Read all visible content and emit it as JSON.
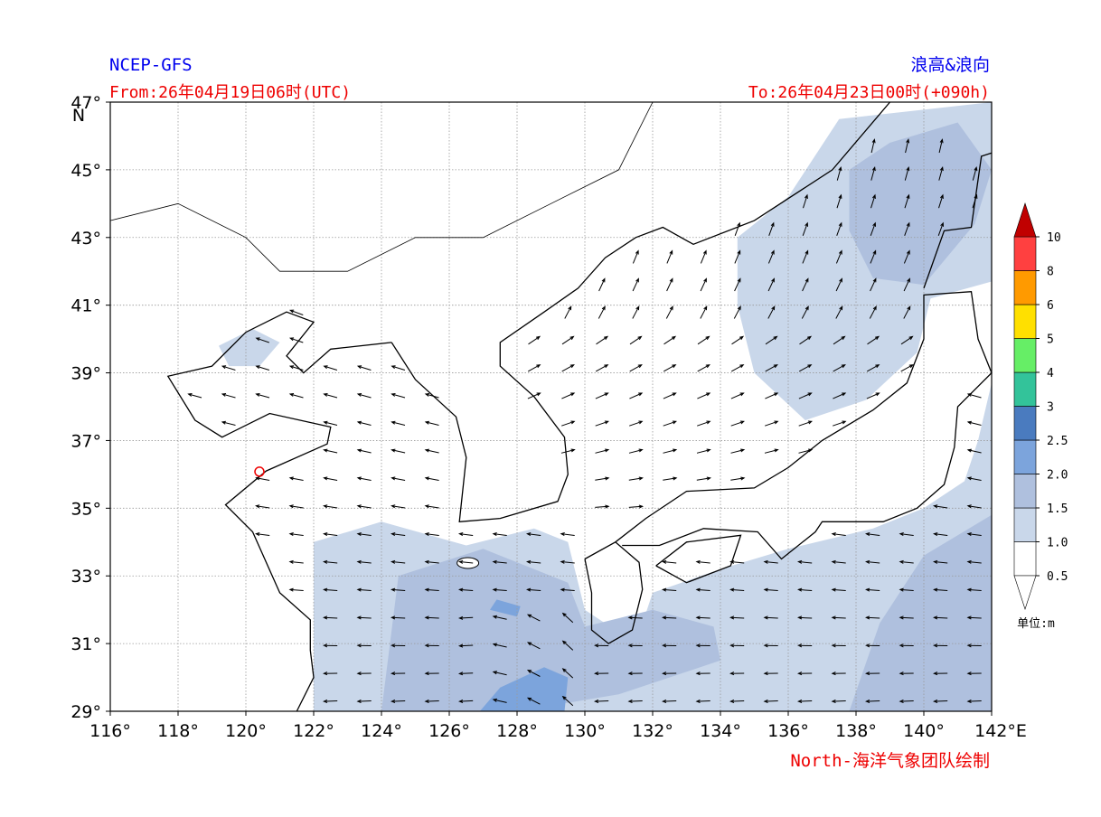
{
  "header": {
    "model": "NCEP-GFS",
    "title": "浪高&浪向",
    "from": "From:26年04月19日06时(UTC)",
    "to": "To:26年04月23日00时(+090h)"
  },
  "footer": "North-海洋气象团队绘制",
  "map": {
    "xlim": [
      116,
      142
    ],
    "ylim": [
      29,
      47
    ],
    "xticks": [
      {
        "value": 116,
        "label": "116°"
      },
      {
        "value": 118,
        "label": "118°"
      },
      {
        "value": 120,
        "label": "120°"
      },
      {
        "value": 122,
        "label": "122°"
      },
      {
        "value": 124,
        "label": "124°"
      },
      {
        "value": 126,
        "label": "126°"
      },
      {
        "value": 128,
        "label": "128°"
      },
      {
        "value": 130,
        "label": "130°"
      },
      {
        "value": 132,
        "label": "132°"
      },
      {
        "value": 134,
        "label": "134°"
      },
      {
        "value": 136,
        "label": "136°"
      },
      {
        "value": 138,
        "label": "138°"
      },
      {
        "value": 140,
        "label": "140°"
      },
      {
        "value": 142,
        "label": "142°E"
      }
    ],
    "yticks": [
      {
        "value": 29,
        "label": "29°"
      },
      {
        "value": 31,
        "label": "31°"
      },
      {
        "value": 33,
        "label": "33°"
      },
      {
        "value": 35,
        "label": "35°"
      },
      {
        "value": 37,
        "label": "37°"
      },
      {
        "value": 39,
        "label": "39°"
      },
      {
        "value": 41,
        "label": "41°"
      },
      {
        "value": 43,
        "label": "43°"
      },
      {
        "value": 45,
        "label": "45°"
      },
      {
        "value": 47,
        "label": "47°"
      }
    ],
    "north_label": "N"
  },
  "colorbar": {
    "levels": [
      0.5,
      {
        "value": 1,
        "label": "1.0"
      },
      {
        "value": 1.5,
        "label": "1.5"
      },
      {
        "value": 2,
        "label": "2.0"
      },
      2.5,
      3,
      4,
      5,
      6,
      8,
      10
    ],
    "colors": [
      "#ffffff",
      "#c9d7ea",
      "#afc0de",
      "#7ca4dc",
      "#4a7bbf",
      "#33c39a",
      "#66ee66",
      "#ffe000",
      "#ff9a00",
      "#ff4040"
    ],
    "extend_color": "#c00000",
    "unit": "单位:m"
  }
}
